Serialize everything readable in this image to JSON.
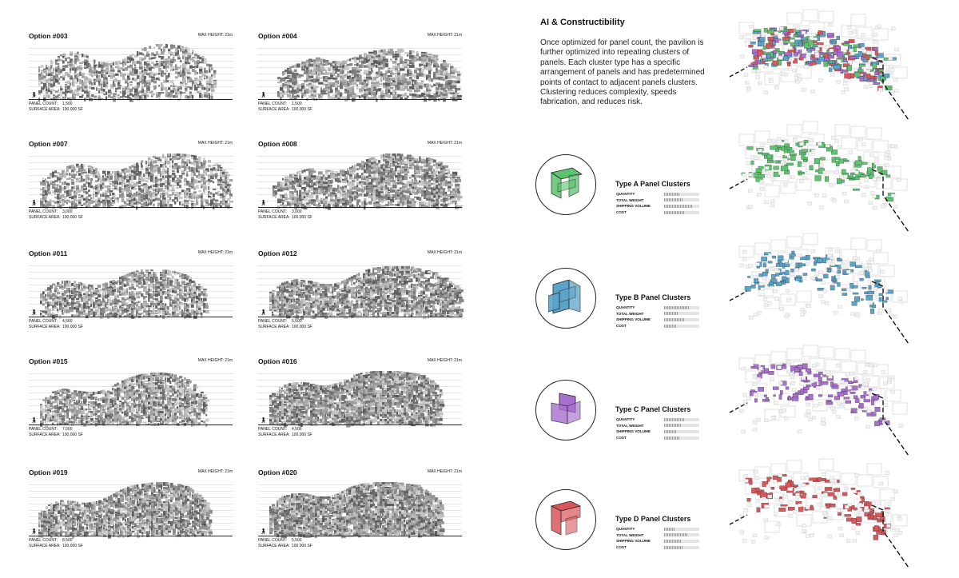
{
  "options": [
    {
      "title": "Option #003",
      "max_height": "MAX HEIGHT: 21m",
      "panel_count_label": "PANEL COUNT:",
      "panel_count": "1,500",
      "surface_area_label": "SURFACE AREA:",
      "surface_area": "100,000 SF"
    },
    {
      "title": "Option #004",
      "max_height": "MAX HEIGHT: 21m",
      "panel_count_label": "PANEL COUNT:",
      "panel_count": "1,500",
      "surface_area_label": "SURFACE AREA:",
      "surface_area": "100,000 SF"
    },
    {
      "title": "Option #007",
      "max_height": "MAX HEIGHT: 21m",
      "panel_count_label": "PANEL COUNT:",
      "panel_count": "3,000",
      "surface_area_label": "SURFACE AREA:",
      "surface_area": "100,000 SF"
    },
    {
      "title": "Option #008",
      "max_height": "MAX HEIGHT: 21m",
      "panel_count_label": "PANEL COUNT:",
      "panel_count": "3,000",
      "surface_area_label": "SURFACE AREA:",
      "surface_area": "100,000 SF"
    },
    {
      "title": "Option #011",
      "max_height": "MAX HEIGHT: 21m",
      "panel_count_label": "PANEL COUNT:",
      "panel_count": "4,500",
      "surface_area_label": "SURFACE AREA:",
      "surface_area": "100,000 SF"
    },
    {
      "title": "Option #012",
      "max_height": "MAX HEIGHT: 21m",
      "panel_count_label": "PANEL COUNT:",
      "panel_count": "5,500",
      "surface_area_label": "SURFACE AREA:",
      "surface_area": "100,000 SF"
    },
    {
      "title": "Option #015",
      "max_height": "MAX HEIGHT: 21m",
      "panel_count_label": "PANEL COUNT:",
      "panel_count": "7,000",
      "surface_area_label": "SURFACE AREA:",
      "surface_area": "100,000 SF"
    },
    {
      "title": "Option #016",
      "max_height": "MAX HEIGHT: 21m",
      "panel_count_label": "PANEL COUNT:",
      "panel_count": "4,500",
      "surface_area_label": "SURFACE AREA:",
      "surface_area": "100,000 SF"
    },
    {
      "title": "Option #019",
      "max_height": "MAX HEIGHT: 21m",
      "panel_count_label": "PANEL COUNT:",
      "panel_count": "8,500",
      "surface_area_label": "SURFACE AREA:",
      "surface_area": "100,000 SF"
    },
    {
      "title": "Option #020",
      "max_height": "MAX HEIGHT: 21m",
      "panel_count_label": "PANEL COUNT:",
      "panel_count": "5,500",
      "surface_area_label": "SURFACE AREA:",
      "surface_area": "100,000 SF"
    }
  ],
  "section": {
    "title": "AI & Constructibility",
    "body": "Once optimized for panel count, the pavilion is further optimized into repeating clusters of panels. Each cluster type has a specific arrangement of panels and has predetermined points of contact to adjacent panels clusters. Clustering reduces complexity, speeds fabrication, and reduces risk."
  },
  "clusters": [
    {
      "title": "Type A Panel Clusters",
      "color": "#5cc36f",
      "icon": "panel-cluster-a-icon",
      "metrics": [
        {
          "label": "QUANTITY",
          "value": 0.45
        },
        {
          "label": "TOTAL WEIGHT",
          "value": 0.55
        },
        {
          "label": "SHIPPING VOLUME",
          "value": 0.8
        },
        {
          "label": "COST",
          "value": 0.6
        }
      ]
    },
    {
      "title": "Type B Panel Clusters",
      "color": "#5aa3c9",
      "icon": "panel-cluster-b-icon",
      "metrics": [
        {
          "label": "QUANTITY",
          "value": 0.7
        },
        {
          "label": "TOTAL WEIGHT",
          "value": 0.4
        },
        {
          "label": "SHIPPING VOLUME",
          "value": 0.6
        },
        {
          "label": "COST",
          "value": 0.35
        }
      ]
    },
    {
      "title": "Type C Panel Clusters",
      "color": "#a86fd0",
      "icon": "panel-cluster-c-icon",
      "metrics": [
        {
          "label": "QUANTITY",
          "value": 0.6
        },
        {
          "label": "TOTAL WEIGHT",
          "value": 0.5
        },
        {
          "label": "SHIPPING VOLUME",
          "value": 0.35
        },
        {
          "label": "COST",
          "value": 0.45
        }
      ]
    },
    {
      "title": "Type D Panel Clusters",
      "color": "#d9575b",
      "icon": "panel-cluster-d-icon",
      "metrics": [
        {
          "label": "QUANTITY",
          "value": 0.3
        },
        {
          "label": "TOTAL WEIGHT",
          "value": 0.65
        },
        {
          "label": "SHIPPING VOLUME",
          "value": 0.5
        },
        {
          "label": "COST",
          "value": 0.55
        }
      ]
    }
  ],
  "axonometric_colors": [
    "#5cc36f",
    "#5aa3c9",
    "#a86fd0",
    "#d9575b"
  ]
}
